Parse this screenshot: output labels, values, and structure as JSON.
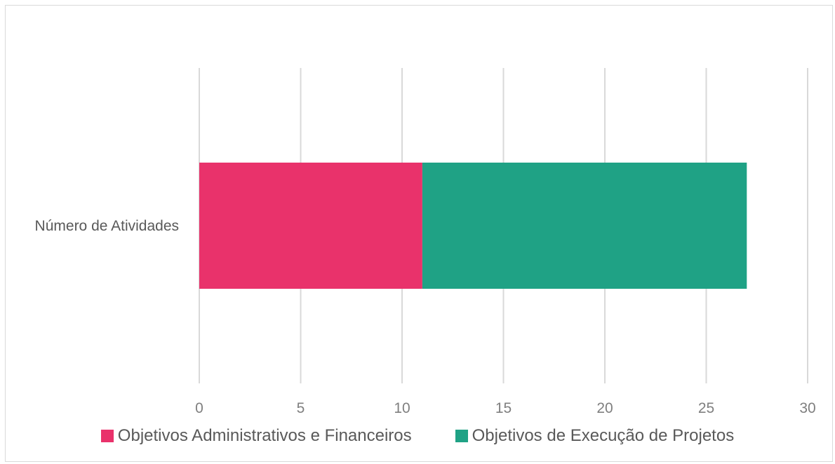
{
  "chart_data": {
    "type": "bar",
    "orientation": "horizontal",
    "stacked": true,
    "categories": [
      "Número de Atividades"
    ],
    "series": [
      {
        "name": "Objetivos Administrativos e Financeiros",
        "values": [
          11
        ],
        "color": "#E9326B"
      },
      {
        "name": "Objetivos de Execução de Projetos",
        "values": [
          16
        ],
        "color": "#1FA285"
      }
    ],
    "xlim": [
      0,
      30
    ],
    "xticks": [
      0,
      5,
      10,
      15,
      20,
      25,
      30
    ],
    "grid": "vertical",
    "legend": "bottom",
    "title": "",
    "xlabel": "",
    "ylabel": ""
  }
}
